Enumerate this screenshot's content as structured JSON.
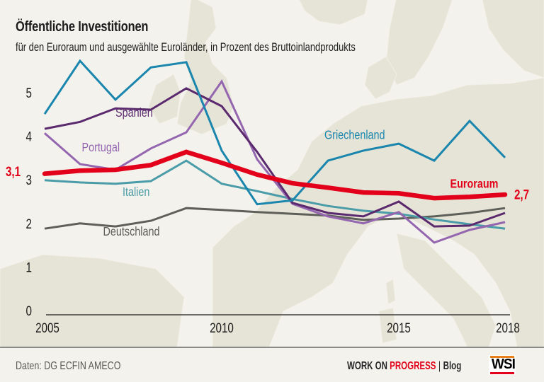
{
  "header": {
    "title": "Öffentliche Investitionen",
    "subtitle": "für den Euroraum und ausgewählte Euroländer, in Prozent des Bruttoinlandprodukts"
  },
  "footer": {
    "source": "Daten:  DG ECFIN AMECO",
    "brand_part1": "WORK ON ",
    "brand_part2": "PROGRESS",
    "brand_sep": "|",
    "brand_part3": "Blog",
    "logo": "WSI"
  },
  "colors": {
    "background": "#f3f2ec",
    "land": "#e6e4d6",
    "accent": "#e2001a"
  },
  "chart_data": {
    "type": "line",
    "title": "Öffentliche Investitionen",
    "subtitle": "für den Euroraum und ausgewählte Euroländer, in Prozent des Bruttoinlandprodukts",
    "xlabel": "",
    "ylabel": "",
    "x": [
      2005,
      2006,
      2007,
      2008,
      2009,
      2010,
      2011,
      2012,
      2013,
      2014,
      2015,
      2016,
      2017,
      2018
    ],
    "xlim": [
      2005,
      2018
    ],
    "ylim": [
      0,
      5.9
    ],
    "x_ticks": [
      "2005",
      "2010",
      "2015",
      "2018"
    ],
    "x_tick_values": [
      2005,
      2010,
      2015,
      2018
    ],
    "y_ticks": [
      "0",
      "1",
      "2",
      "3",
      "4",
      "5"
    ],
    "y_tick_values": [
      0,
      1,
      2,
      3,
      4,
      5
    ],
    "grid": false,
    "legend": "inline labels",
    "series": [
      {
        "name": "Deutschland",
        "color": "#5f5f5a",
        "width": "normal",
        "values": [
          1.88,
          2.0,
          1.93,
          2.06,
          2.35,
          2.31,
          2.26,
          2.22,
          2.18,
          2.08,
          2.11,
          2.16,
          2.24,
          2.35
        ]
      },
      {
        "name": "Italien",
        "color": "#4a9ca8",
        "width": "normal",
        "values": [
          2.99,
          2.94,
          2.91,
          2.97,
          3.44,
          2.91,
          2.74,
          2.56,
          2.4,
          2.29,
          2.22,
          2.09,
          1.98,
          1.88
        ]
      },
      {
        "name": "Portugal",
        "color": "#9466b0",
        "width": "normal",
        "values": [
          4.07,
          3.36,
          3.23,
          3.72,
          4.09,
          5.26,
          3.47,
          2.45,
          2.16,
          2.0,
          2.26,
          1.56,
          1.85,
          2.03
        ]
      },
      {
        "name": "Spanien",
        "color": "#5b2a6e",
        "width": "normal",
        "values": [
          4.17,
          4.33,
          4.64,
          4.61,
          5.1,
          4.69,
          3.64,
          2.47,
          2.24,
          2.16,
          2.5,
          1.93,
          1.95,
          2.24
        ]
      },
      {
        "name": "Griechenland",
        "color": "#1a86ad",
        "width": "normal",
        "values": [
          4.51,
          5.73,
          4.84,
          5.58,
          5.7,
          3.67,
          2.44,
          2.53,
          3.44,
          3.67,
          3.83,
          3.44,
          4.35,
          3.51
        ]
      },
      {
        "name": "Euroraum",
        "color": "#e2001a",
        "width": "bold",
        "values": [
          3.14,
          3.21,
          3.23,
          3.34,
          3.64,
          3.39,
          3.12,
          2.92,
          2.82,
          2.71,
          2.69,
          2.58,
          2.61,
          2.66
        ]
      }
    ],
    "labels": [
      {
        "series": "Spanien",
        "text": "Spanien",
        "anchor_year": 2007.0,
        "anchor_value": 4.45
      },
      {
        "series": "Portugal",
        "text": "Portugal",
        "anchor_year": 2006.05,
        "anchor_value": 3.65
      },
      {
        "series": "Italien",
        "text": "Italien",
        "anchor_year": 2007.2,
        "anchor_value": 2.63
      },
      {
        "series": "Deutschland",
        "text": "Deutschland",
        "anchor_year": 2006.65,
        "anchor_value": 1.72
      },
      {
        "series": "Griechenland",
        "text": "Griechenland",
        "anchor_year": 2012.9,
        "anchor_value": 3.94
      },
      {
        "series": "Euroraum",
        "text": "Euroraum",
        "anchor_year": 2016.45,
        "anchor_value": 2.82
      }
    ],
    "annotations": [
      {
        "text": "3,1",
        "series": "Euroraum",
        "year": 2005,
        "value": 3.1,
        "side": "left"
      },
      {
        "text": "2,7",
        "series": "Euroraum",
        "year": 2018,
        "value": 2.7,
        "side": "right"
      }
    ]
  }
}
